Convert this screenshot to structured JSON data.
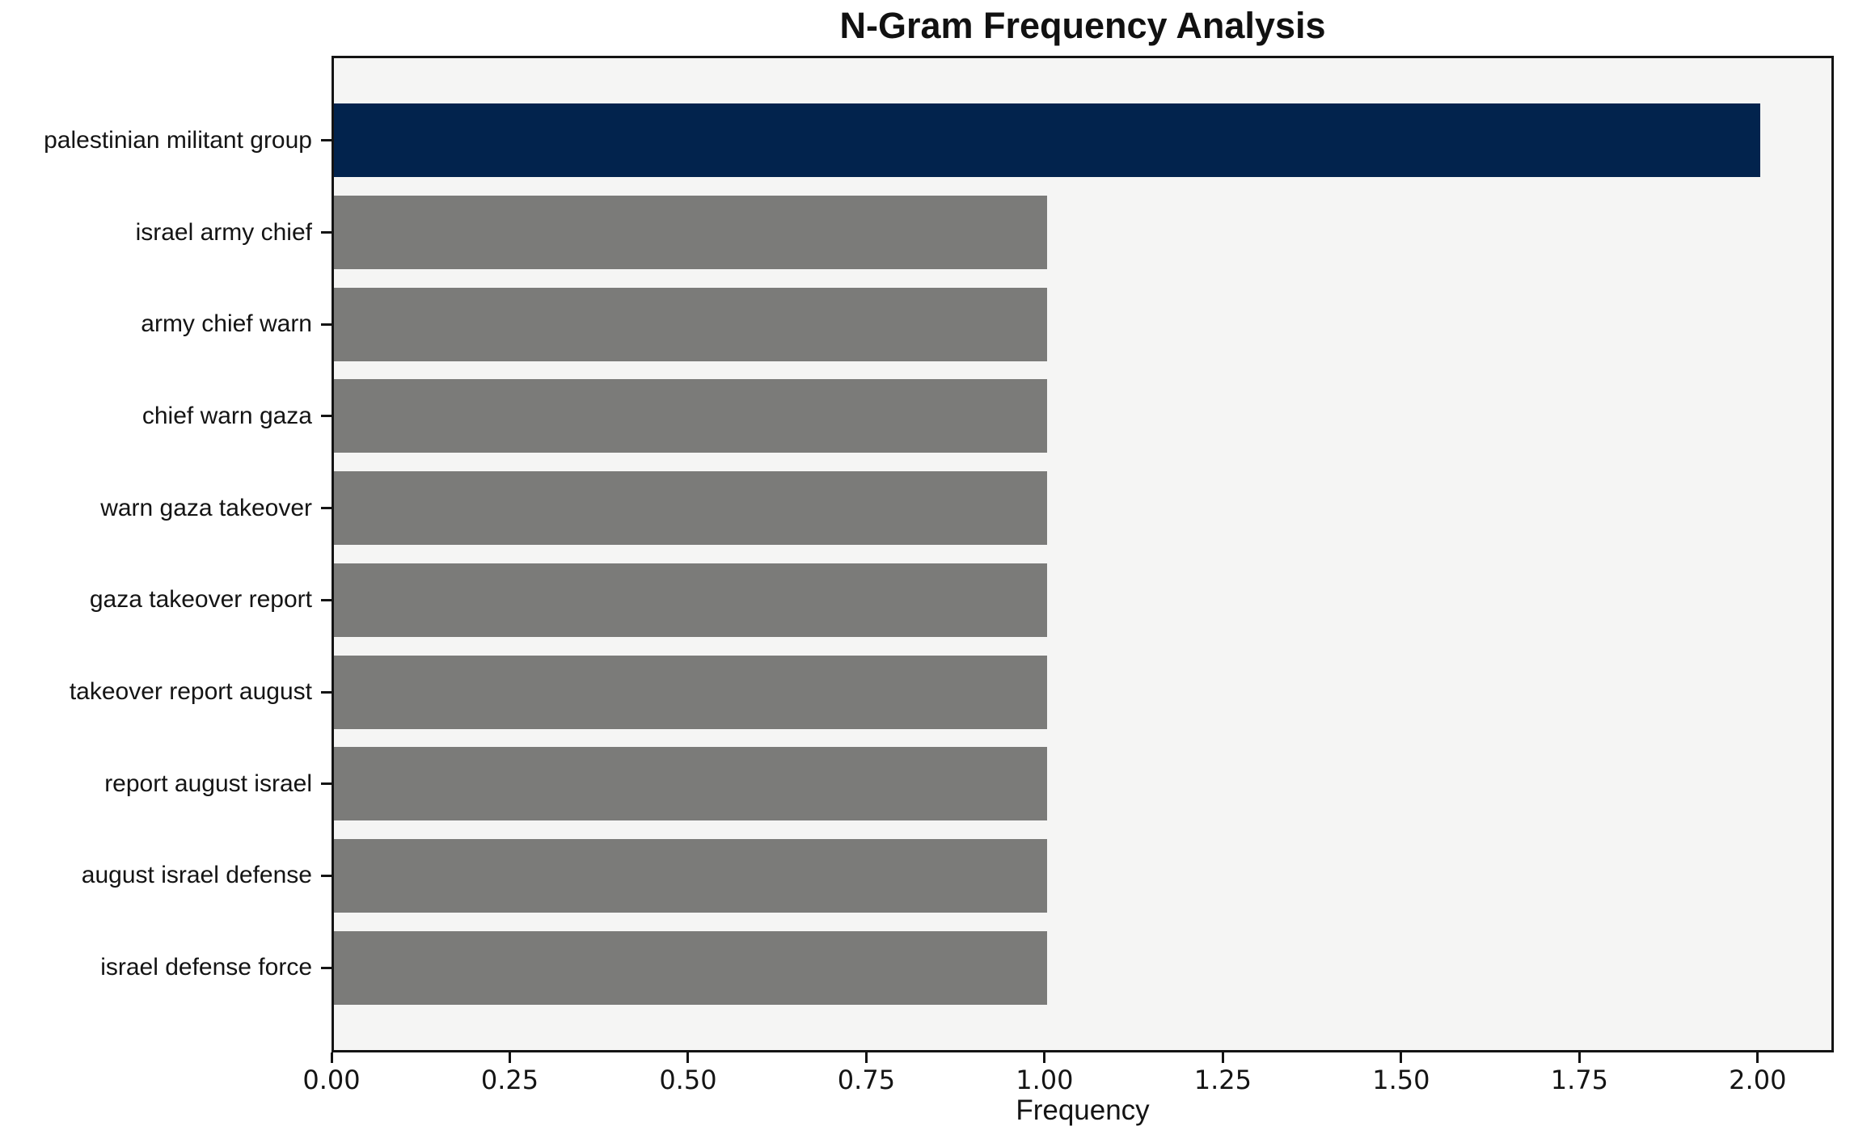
{
  "chart_data": {
    "type": "bar",
    "orientation": "horizontal",
    "title": "N-Gram Frequency Analysis",
    "xlabel": "Frequency",
    "ylabel": "",
    "categories": [
      "palestinian militant group",
      "israel army chief",
      "army chief warn",
      "chief warn gaza",
      "warn gaza takeover",
      "gaza takeover report",
      "takeover report august",
      "report august israel",
      "august israel defense",
      "israel defense force"
    ],
    "values": [
      2,
      1,
      1,
      1,
      1,
      1,
      1,
      1,
      1,
      1
    ],
    "bar_colors": [
      "#02234d",
      "#7b7b79",
      "#7b7b79",
      "#7b7b79",
      "#7b7b79",
      "#7b7b79",
      "#7b7b79",
      "#7b7b79",
      "#7b7b79",
      "#7b7b79"
    ],
    "xlim": [
      0,
      2.1
    ],
    "xticks": [
      {
        "value": 0.0,
        "label": "0.00"
      },
      {
        "value": 0.25,
        "label": "0.25"
      },
      {
        "value": 0.5,
        "label": "0.50"
      },
      {
        "value": 0.75,
        "label": "0.75"
      },
      {
        "value": 1.0,
        "label": "1.00"
      },
      {
        "value": 1.25,
        "label": "1.25"
      },
      {
        "value": 1.5,
        "label": "1.50"
      },
      {
        "value": 1.75,
        "label": "1.75"
      },
      {
        "value": 2.0,
        "label": "2.00"
      }
    ],
    "grid": false,
    "legend": null,
    "colors": {
      "highlight": "#02234d",
      "default": "#7b7b79",
      "plot_background": "#f5f5f4",
      "figure_background": "#ffffff",
      "axis": "#141414"
    }
  }
}
